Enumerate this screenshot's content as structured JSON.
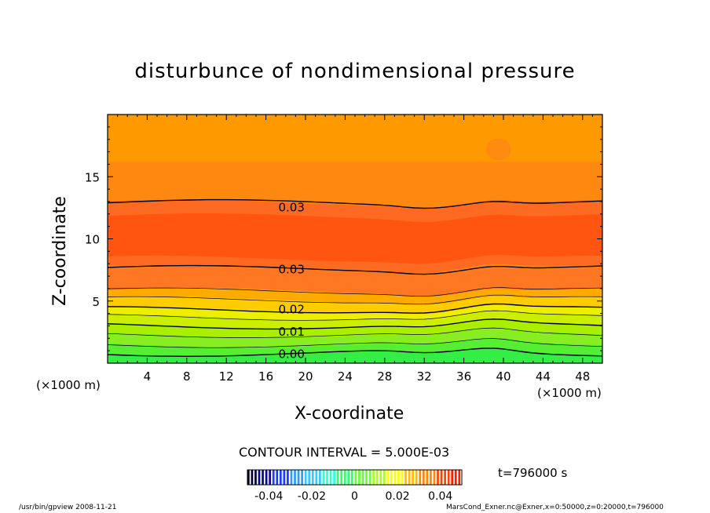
{
  "chart_data": {
    "type": "contour",
    "title": "disturbunce of nondimensional pressure",
    "xlabel": "X-coordinate",
    "ylabel": "Z-coordinate",
    "x_unit": "(×1000 m)",
    "y_unit": "(×1000 m)",
    "xlim": [
      0,
      50
    ],
    "ylim": [
      0,
      20
    ],
    "x_ticks": [
      "4",
      "8",
      "12",
      "16",
      "20",
      "24",
      "28",
      "32",
      "36",
      "40",
      "44",
      "48"
    ],
    "y_ticks": [
      "5",
      "10",
      "15"
    ],
    "contour_labels": [
      {
        "text": "0.03",
        "x": 17,
        "z": 12.6
      },
      {
        "text": "0.03",
        "x": 17,
        "z": 7.6
      },
      {
        "text": "0.02",
        "x": 17,
        "z": 4.4
      },
      {
        "text": "0.01",
        "x": 17,
        "z": 2.6
      },
      {
        "text": "0.00",
        "x": 17,
        "z": 0.8
      }
    ],
    "contour_interval_text": "CONTOUR INTERVAL = 5.000E-03",
    "colorbar": {
      "ticks": [
        "-0.04",
        "-0.02",
        "0",
        "0.02",
        "0.04"
      ],
      "min": -0.05,
      "max": 0.05,
      "colors": [
        "#000033",
        "#0a0a8c",
        "#1a3dff",
        "#3399ff",
        "#33ccff",
        "#33ffcc",
        "#33ff66",
        "#66ff33",
        "#aaff22",
        "#ffff00",
        "#ffbb00",
        "#ff8800",
        "#ff4400",
        "#ff1a00"
      ]
    },
    "time_label": "t=796000 s",
    "footer_left": "/usr/bin/gpview   2008-11-21",
    "footer_right": "MarsCond_Exner.nc@Exner,x=0:50000,z=0:20000,t=796000",
    "band_colors": [
      "#33ee44",
      "#55ee33",
      "#88ee22",
      "#aaee00",
      "#ccee00",
      "#eeee00",
      "#ffcc00",
      "#ff9900",
      "#ff7722",
      "#ff6622",
      "#ff5511"
    ]
  }
}
